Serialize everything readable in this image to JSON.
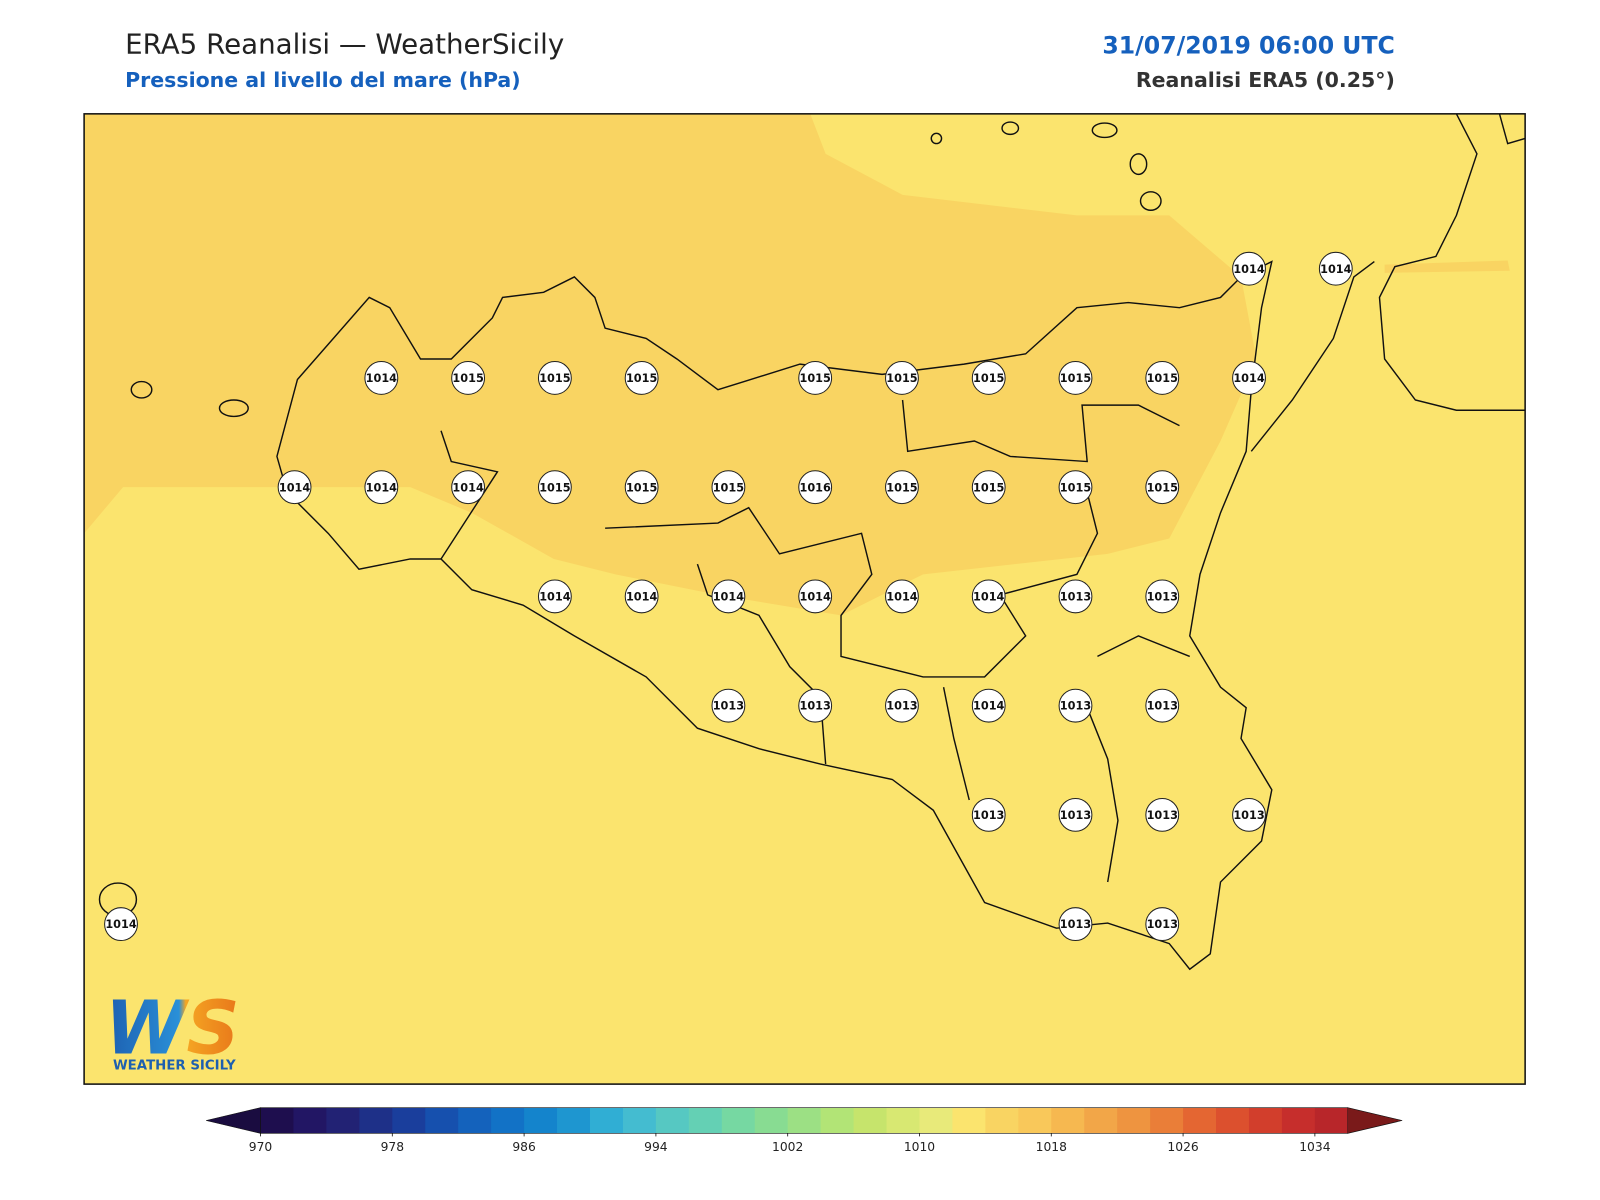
{
  "header": {
    "title": "ERA5 Reanalisi — WeatherSicily",
    "subtitle": "Pressione al livello del mare (hPa)",
    "datetime": "31/07/2019 06:00 UTC",
    "source": "Reanalisi ERA5 (0.25°)"
  },
  "map": {
    "stations": [
      [
        1014,
        1014
      ],
      [
        1014,
        1015,
        1015,
        1015,
        1015,
        1015,
        1015,
        1015,
        1015,
        1014
      ],
      [
        1014,
        1014,
        1014,
        1015,
        1015,
        1015,
        1016,
        1015,
        1015,
        1015,
        1015
      ],
      [
        1014,
        1014,
        1014,
        1014,
        1014,
        1014,
        1013,
        1013
      ],
      [
        1013,
        1013,
        1013,
        1014,
        1013,
        1013
      ],
      [
        1013,
        1013,
        1013,
        1013
      ],
      [
        1014,
        1013,
        1013
      ]
    ]
  },
  "colorbar": {
    "range": [
      970,
      1036
    ],
    "ticks": [
      970,
      978,
      986,
      994,
      1002,
      1010,
      1018,
      1026,
      1034
    ],
    "colors": [
      "#1e0e4e",
      "#221664",
      "#222274",
      "#1e3088",
      "#1a3e9c",
      "#1650ae",
      "#1462bc",
      "#1272c6",
      "#1484cc",
      "#1e96d0",
      "#30aed4",
      "#44bcd0",
      "#56c8c2",
      "#64d0b4",
      "#76d8a2",
      "#88dc92",
      "#9ce084",
      "#b2e476",
      "#c6e46c",
      "#d8e872",
      "#e8ea7a",
      "#fbe46e",
      "#f9d462",
      "#f9c85a",
      "#f6b850",
      "#f2a648",
      "#ee9440",
      "#ea7e38",
      "#e46632",
      "#dc502e",
      "#d23e2c",
      "#c62e2c",
      "#b8262a"
    ],
    "under_color": "#1a0c40",
    "over_color": "#7a1a1a"
  },
  "logo": {
    "mark": "WS",
    "text": "WEATHER SICILY"
  }
}
